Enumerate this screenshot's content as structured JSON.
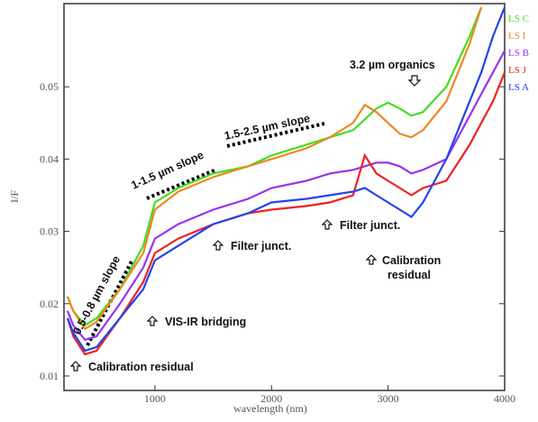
{
  "chart_data": {
    "type": "line",
    "x_label": "wavelength (nm)",
    "y_label": "I/F",
    "x": [
      250,
      300,
      400,
      500,
      700,
      900,
      1000,
      1200,
      1500,
      1800,
      2000,
      2300,
      2500,
      2700,
      2800,
      2900,
      3000,
      3100,
      3200,
      3300,
      3500,
      3700,
      3800,
      3900,
      4000
    ],
    "series": [
      {
        "name": "LS C",
        "color": "#44dd22",
        "values": [
          0.021,
          0.019,
          0.017,
          0.018,
          0.022,
          0.028,
          0.034,
          0.036,
          0.038,
          0.039,
          0.0405,
          0.042,
          0.043,
          0.044,
          0.0455,
          0.047,
          0.0478,
          0.047,
          0.046,
          0.0465,
          0.05,
          0.057,
          0.061,
          null,
          null
        ]
      },
      {
        "name": "LS I",
        "color": "#ee8822",
        "values": [
          0.021,
          0.019,
          0.0165,
          0.0175,
          0.022,
          0.027,
          0.033,
          0.0355,
          0.0375,
          0.039,
          0.04,
          0.0415,
          0.043,
          0.045,
          0.0475,
          0.0465,
          0.045,
          0.0435,
          0.043,
          0.044,
          0.048,
          0.056,
          0.061,
          null,
          null
        ]
      },
      {
        "name": "LS B",
        "color": "#9933ee",
        "values": [
          0.019,
          0.017,
          0.015,
          0.0155,
          0.02,
          0.025,
          0.029,
          0.031,
          0.033,
          0.0345,
          0.036,
          0.037,
          0.038,
          0.0385,
          0.039,
          0.0395,
          0.0395,
          0.039,
          0.038,
          0.0385,
          0.04,
          0.046,
          0.049,
          0.052,
          0.055
        ]
      },
      {
        "name": "LS J",
        "color": "#ee2222",
        "values": [
          0.018,
          0.0155,
          0.013,
          0.0135,
          0.018,
          0.023,
          0.027,
          0.029,
          0.031,
          0.0325,
          0.033,
          0.0335,
          0.034,
          0.035,
          0.0405,
          0.038,
          0.037,
          0.036,
          0.035,
          0.036,
          0.037,
          0.042,
          0.045,
          0.048,
          0.052
        ]
      },
      {
        "name": "LS A",
        "color": "#2244ee",
        "values": [
          0.018,
          0.016,
          0.0135,
          0.014,
          0.018,
          0.022,
          0.026,
          0.028,
          0.031,
          0.0325,
          0.034,
          0.0345,
          0.035,
          0.0355,
          0.036,
          0.035,
          0.034,
          0.033,
          0.032,
          0.034,
          0.04,
          0.048,
          0.052,
          0.057,
          0.061
        ]
      }
    ],
    "annotations": [
      "0.5-0.8 µm slope",
      "1-1.5 µm slope",
      "1.5-2.5 µm slope",
      "3.2 µm organics",
      "Filter junct.",
      "Filter junct.",
      "Calibration residual",
      "VIS-IR bridging",
      "Calibration residual"
    ],
    "xlim": [
      220,
      4000
    ],
    "ylim": [
      0.008,
      0.0615
    ],
    "xticks": [
      1000,
      2000,
      3000,
      4000
    ],
    "yticks": [
      0.01,
      0.02,
      0.03,
      0.04,
      0.05
    ]
  }
}
